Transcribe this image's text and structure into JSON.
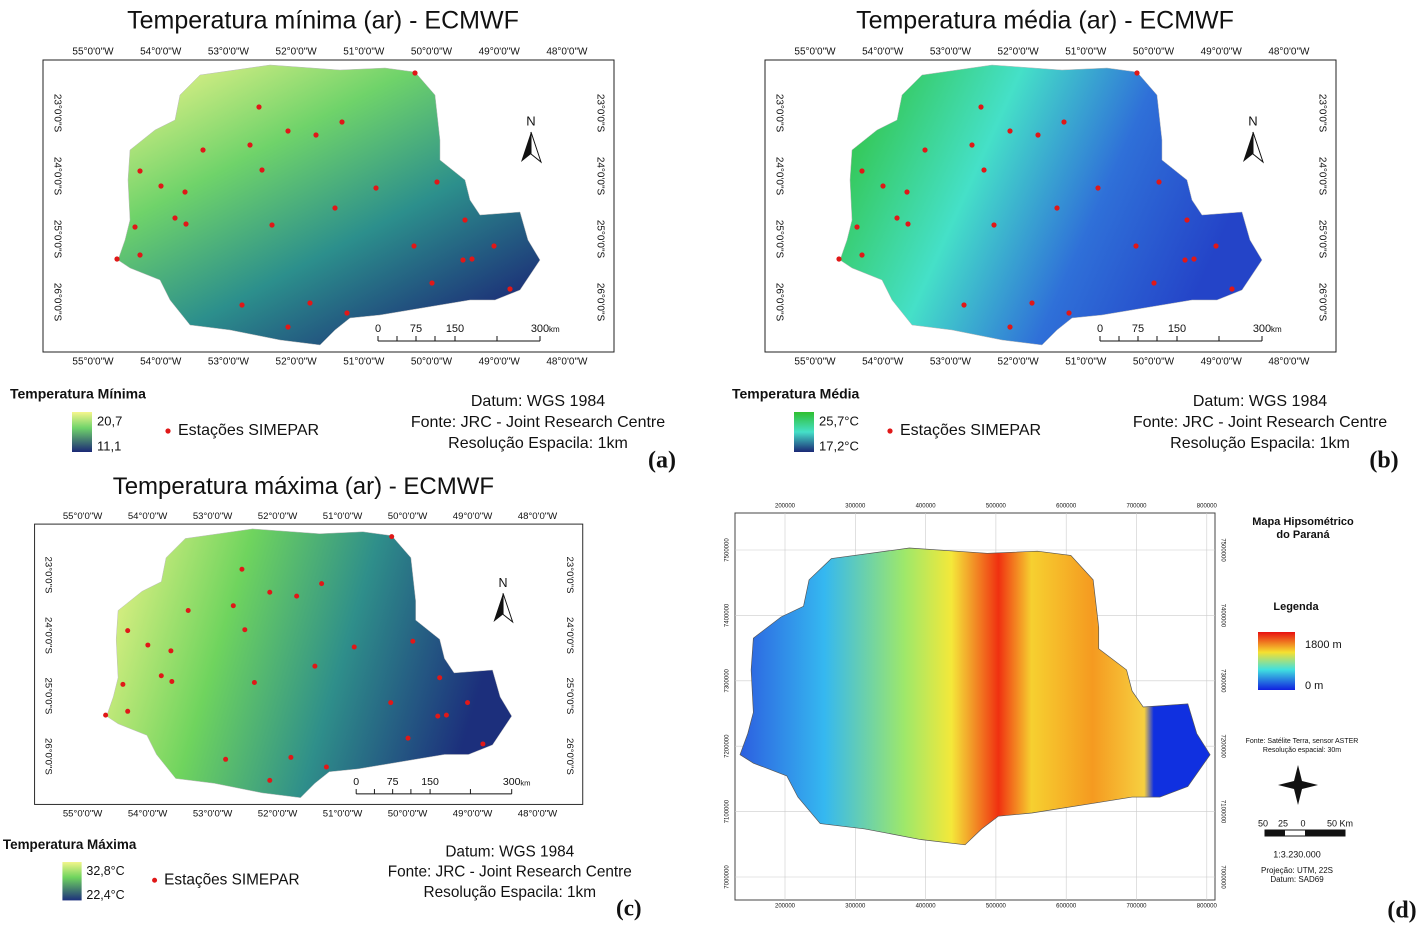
{
  "panels": [
    {
      "title": "Temperatura mínima (ar) -  ECMWF",
      "lon_ticks": [
        "55°0'0\"W",
        "54°0'0\"W",
        "53°0'0\"W",
        "52°0'0\"W",
        "51°0'0\"W",
        "50°0'0\"W",
        "49°0'0\"W",
        "48°0'0\"W"
      ],
      "lat_ticks": [
        "23°0'0\"S",
        "24°0'0\"S",
        "25°0'0\"S",
        "26°0'0\"S"
      ],
      "north": "N",
      "scale_labels": [
        "0",
        "75",
        "150",
        "300"
      ],
      "scale_unit": "km",
      "legend_title": "Temperatura Mínima",
      "legend_max": "20,7",
      "legend_min": "11,1",
      "stations": "Estações SIMEPAR",
      "info": [
        "Datum: WGS 1984",
        "Fonte: JRC - Joint Research Centre",
        "Resolução Espacila: 1km"
      ],
      "label": "(a)"
    },
    {
      "title": "Temperatura média (ar) -  ECMWF",
      "lon_ticks": [
        "55°0'0\"W",
        "54°0'0\"W",
        "53°0'0\"W",
        "52°0'0\"W",
        "51°0'0\"W",
        "50°0'0\"W",
        "49°0'0\"W",
        "48°0'0\"W"
      ],
      "lat_ticks": [
        "23°0'0\"S",
        "24°0'0\"S",
        "25°0'0\"S",
        "26°0'0\"S"
      ],
      "north": "N",
      "scale_labels": [
        "0",
        "75",
        "150",
        "300"
      ],
      "scale_unit": "km",
      "legend_title": "Temperatura Média",
      "legend_max": "25,7°C",
      "legend_min": "17,2°C",
      "stations": "Estações SIMEPAR",
      "info": [
        "Datum: WGS 1984",
        "Fonte: JRC - Joint Research Centre",
        "Resolução Espacila: 1km"
      ],
      "label": "(b)"
    },
    {
      "title": "Temperatura máxima (ar) -  ECMWF",
      "lon_ticks": [
        "55°0'0\"W",
        "54°0'0\"W",
        "53°0'0\"W",
        "52°0'0\"W",
        "51°0'0\"W",
        "50°0'0\"W",
        "49°0'0\"W",
        "48°0'0\"W"
      ],
      "lat_ticks": [
        "23°0'0\"S",
        "24°0'0\"S",
        "25°0'0\"S",
        "26°0'0\"S"
      ],
      "north": "N",
      "scale_labels": [
        "0",
        "75",
        "150",
        "300"
      ],
      "scale_unit": "km",
      "legend_title": "Temperatura Máxima",
      "legend_max": "32,8°C",
      "legend_min": "22,4°C",
      "stations": "Estações SIMEPAR",
      "info": [
        "Datum: WGS 1984",
        "Fonte: JRC - Joint Research Centre",
        "Resolução Espacila: 1km"
      ],
      "label": "(c)"
    }
  ],
  "hypsometric": {
    "title": [
      "Mapa Hipsométrico",
      "do Paraná"
    ],
    "x_ticks": [
      "200000",
      "300000",
      "400000",
      "500000",
      "600000",
      "700000",
      "800000"
    ],
    "y_ticks": [
      "7500000",
      "7400000",
      "7300000",
      "7200000",
      "7100000",
      "7000000"
    ],
    "legend_title": "Legenda",
    "legend_max": "1800 m",
    "legend_min": "0 m",
    "source": [
      "Fonte: Satélite Terra, sensor ASTER",
      "Resolução espacial: 30m"
    ],
    "scale_labels": [
      "50",
      "25",
      "0",
      "50 Km"
    ],
    "ratio": "1:3.230.000",
    "projection": [
      "Projeção: UTM, 22S",
      "Datum: SAD69"
    ],
    "label": "(d)"
  }
}
